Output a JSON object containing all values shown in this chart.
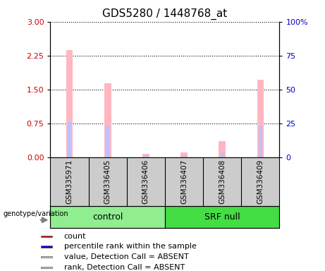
{
  "title": "GDS5280 / 1448768_at",
  "samples": [
    "GSM335971",
    "GSM336405",
    "GSM336406",
    "GSM336407",
    "GSM336408",
    "GSM336409"
  ],
  "group_labels": [
    "control",
    "SRF null"
  ],
  "group_colors": [
    "#90ee90",
    "#44dd44"
  ],
  "ylim_left": [
    0,
    3
  ],
  "ylim_right": [
    0,
    100
  ],
  "yticks_left": [
    0,
    0.75,
    1.5,
    2.25,
    3
  ],
  "yticks_right": [
    0,
    25,
    50,
    75,
    100
  ],
  "absent_bar_color": "#ffb6c1",
  "absent_rank_color": "#c0c0ff",
  "bar_width": 0.18,
  "rank_bar_width": 0.1,
  "value_absent": [
    2.37,
    1.63,
    0.07,
    0.1,
    0.35,
    1.72
  ],
  "rank_absent": [
    0.77,
    0.68,
    0.04,
    0.04,
    0.1,
    0.7
  ],
  "legend_items": [
    {
      "label": "count",
      "color": "#cc0000"
    },
    {
      "label": "percentile rank within the sample",
      "color": "#0000cc"
    },
    {
      "label": "value, Detection Call = ABSENT",
      "color": "#ffb6c1"
    },
    {
      "label": "rank, Detection Call = ABSENT",
      "color": "#c0c0ff"
    }
  ],
  "ylabel_left_color": "#cc0000",
  "ylabel_right_color": "#0000cc",
  "bg_color": "#cccccc",
  "plot_bg": "#ffffff",
  "title_fontsize": 11,
  "tick_fontsize": 8,
  "legend_fontsize": 8,
  "sample_fontsize": 7.5,
  "group_fontsize": 9
}
